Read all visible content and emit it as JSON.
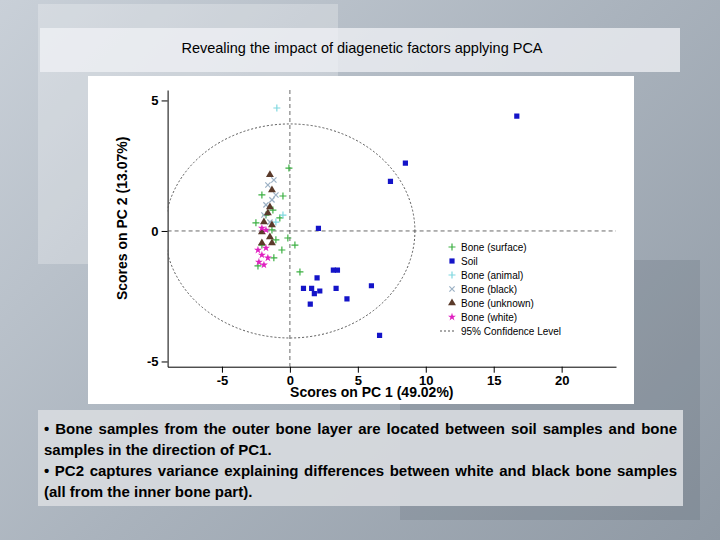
{
  "chart_data": {
    "type": "scatter",
    "title": "Revealing the impact of diagenetic factors applying PCA",
    "x_label": "Scores on PC 1 (49.02%)",
    "y_label": "Scores on PC 2 (13.07%)",
    "xlim": [
      -9,
      24
    ],
    "ylim": [
      -5.2,
      5.4
    ],
    "xticks": [
      -5,
      0,
      5,
      10,
      15,
      20
    ],
    "yticks": [
      -5,
      0,
      5
    ],
    "legend": "right",
    "series": [
      {
        "name": "Bone (surface)",
        "color": "#3cb043",
        "marker": "plus",
        "x": [
          -0.07,
          -2.06,
          -0.51,
          -1.25,
          -1.76,
          -0.74,
          -2.5,
          -1.32,
          -0.15,
          -1.03,
          -2.06,
          0.37,
          -0.59,
          -1.18,
          0.74,
          -2.35
        ],
        "values": [
          2.41,
          1.38,
          1.34,
          0.8,
          0.61,
          0.5,
          0.31,
          0.04,
          -0.27,
          -0.34,
          -0.54,
          -0.54,
          -0.73,
          -1.03,
          -1.57,
          -1.34
        ]
      },
      {
        "name": "Soil",
        "color": "#1414c8",
        "marker": "square",
        "x": [
          16.7,
          8.5,
          7.4,
          2.1,
          3.2,
          3.5,
          2.0,
          1.0,
          1.6,
          2.2,
          1.8,
          1.5,
          3.4,
          4.2,
          6.0,
          6.6
        ],
        "values": [
          4.4,
          2.6,
          1.9,
          0.1,
          -1.5,
          -1.5,
          -1.8,
          -2.2,
          -2.2,
          -2.3,
          -2.4,
          -2.8,
          -2.2,
          -2.6,
          -2.1,
          -4.0
        ]
      },
      {
        "name": "Bone (animal)",
        "color": "#7fd8e0",
        "marker": "plus",
        "x": [
          -0.96,
          -0.51,
          -1.03
        ],
        "values": [
          4.71,
          0.61,
          0.34
        ]
      },
      {
        "name": "Bone (black)",
        "color": "#9bb0c4",
        "marker": "x",
        "x": [
          -1.62,
          -1.32,
          -1.76,
          -1.18,
          -1.91,
          -1.47,
          -1.03
        ],
        "values": [
          1.76,
          1.19,
          1.0,
          1.95,
          0.61,
          0.34,
          1.38
        ]
      },
      {
        "name": "Bone (unknown)",
        "color": "#5a3a2a",
        "marker": "triangle",
        "x": [
          -1.47,
          -1.32,
          -1.47,
          -1.62,
          -1.91,
          -1.32,
          -2.06,
          -1.47,
          -2.06,
          -1.32
        ],
        "values": [
          2.15,
          1.57,
          0.92,
          0.69,
          0.34,
          0.23,
          -0.04,
          -0.23,
          -0.46,
          -0.46
        ]
      },
      {
        "name": "Bone (white)",
        "color": "#e020c0",
        "marker": "star",
        "x": [
          -2.06,
          -1.76,
          -2.35,
          -2.06,
          -1.76,
          -2.28,
          -1.91,
          -1.62
        ],
        "values": [
          0.11,
          0.04,
          -0.73,
          -0.92,
          -0.65,
          -1.19,
          -1.3,
          -1.03
        ]
      },
      {
        "name": "95% Confidence Level",
        "type": "ellipse",
        "color": "#555555",
        "line_style": "dotted",
        "center": [
          0,
          0
        ],
        "radii": [
          9.2,
          4.1
        ]
      }
    ],
    "annotations": [
      "• Bone samples from the outer bone layer are located between soil samples and bone samples in the direction of PC1.",
      "• PC2 captures variance explaining differences between white and black bone samples (all from the inner bone part)."
    ]
  }
}
